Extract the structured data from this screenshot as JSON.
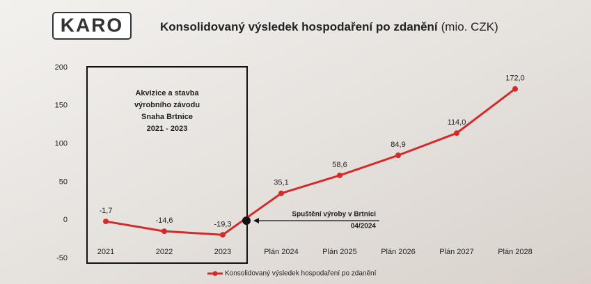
{
  "chart_data": {
    "type": "line",
    "logo": "KARO",
    "title": "Konsolidovaný výsledek hospodaření po zdanění",
    "title_unit": "(mio. CZK)",
    "categories": [
      "2021",
      "2022",
      "2023",
      "Plán 2024",
      "Plán 2025",
      "Plán 2026",
      "Plán 2027",
      "Plán 2028"
    ],
    "series": [
      {
        "name": "Konsolidovaný výsledek hospodaření po zdanění",
        "color": "#d42a2a",
        "values": [
          -1.7,
          -14.6,
          -19.3,
          35.1,
          58.6,
          84.9,
          114.0,
          172.0
        ],
        "value_labels": [
          "-1,7",
          "-14,6",
          "-19,3",
          "35,1",
          "58,6",
          "84,9",
          "114,0",
          "172,0"
        ]
      }
    ],
    "ylim": [
      -50,
      200
    ],
    "yticks": [
      -50,
      0,
      50,
      100,
      150,
      200
    ],
    "annotations": [
      {
        "lines": [
          "Akvizice a stavba",
          "výrobního závodu",
          "Snaha Brtnice",
          "2021 - 2023"
        ]
      },
      {
        "lines": [
          "Spuštění výroby v Brtnici",
          "04/2024"
        ]
      }
    ]
  }
}
